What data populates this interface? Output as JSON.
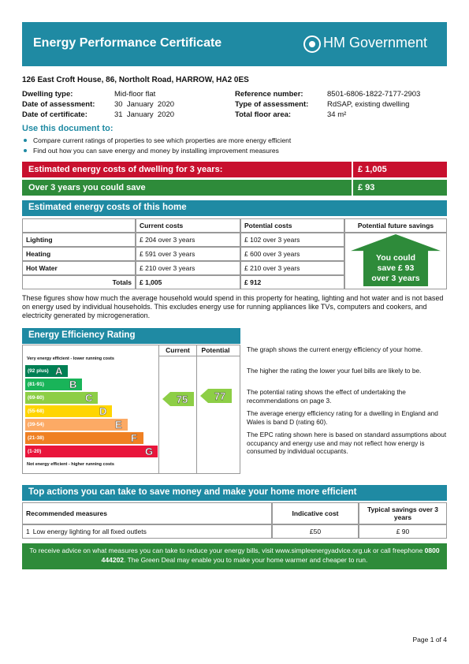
{
  "header": {
    "title": "Energy Performance Certificate",
    "logo": "HM Government"
  },
  "address": "126 East Croft House, 86, Northolt Road, HARROW, HA2 0ES",
  "details": {
    "left": [
      {
        "label": "Dwelling type:",
        "value": "Mid-floor flat"
      },
      {
        "label": "Date of assessment:",
        "value": "30  January  2020"
      },
      {
        "label": "Date of certificate:",
        "value": "31  January  2020"
      }
    ],
    "right": [
      {
        "label": "Reference number:",
        "value": "8501-6806-1822-7177-2903"
      },
      {
        "label": "Type of assessment:",
        "value": "RdSAP, existing dwelling"
      },
      {
        "label": "Total floor area:",
        "value": "34 m²"
      }
    ]
  },
  "use": {
    "title": "Use this document to:",
    "items": [
      "Compare current ratings of properties to see which properties are more energy efficient",
      "Find out how you can save energy and money by installing improvement measures"
    ]
  },
  "summary": [
    {
      "label": "Estimated energy costs of dwelling for 3 years:",
      "value": "£ 1,005"
    },
    {
      "label": "Over 3 years you could save",
      "value": "£ 93"
    }
  ],
  "costs": {
    "title": "Estimated energy costs of this home",
    "headers": [
      "Current costs",
      "Potential costs",
      "Potential future savings"
    ],
    "rows": [
      [
        "Lighting",
        "£ 204 over 3 years",
        "£ 102 over 3 years"
      ],
      [
        "Heating",
        "£ 591 over 3 years",
        "£ 600 over 3 years"
      ],
      [
        "Hot Water",
        "£ 210 over 3 years",
        "£ 210 over 3 years"
      ]
    ],
    "totals": {
      "label": "Totals",
      "current": "£ 1,005",
      "potential": "£ 912"
    },
    "savings": [
      "You could",
      "save £ 93",
      "over 3 years"
    ]
  },
  "note": "These figures show how much the average household would spend in this property for heating, lighting and hot water and is not based on energy used by individual households. This excludes energy use for running appliances like TVs, computers and cookers, and electricity generated by microgeneration.",
  "efficiency": {
    "title": "Energy Efficiency Rating",
    "columns": [
      "Current",
      "Potential"
    ],
    "top_caption": "Very energy efficient - lower running costs",
    "bands": [
      {
        "range": "(92 plus)",
        "letter": "A"
      },
      {
        "range": "(81-91)",
        "letter": "B"
      },
      {
        "range": "(69-80)",
        "letter": "C"
      },
      {
        "range": "(55-68)",
        "letter": "D"
      },
      {
        "range": "(39-54)",
        "letter": "E"
      },
      {
        "range": "(21-38)",
        "letter": "F"
      },
      {
        "range": "(1-20)",
        "letter": "G"
      }
    ],
    "bottom_caption": "Not energy efficient - higher running costs",
    "current": "75",
    "potential": "77",
    "notes": [
      "The graph shows the current energy efficiency of your home.",
      "The higher the rating the lower your fuel bills are likely to be.",
      "The potential rating shows the effect of undertaking the recommendations on page 3.",
      "The average energy efficiency rating for a dwelling in England and Wales is band D (rating 60).",
      "The EPC rating shown here is based on standard assumptions about occupancy and energy use and may not reflect how energy is consumed by individual occupants."
    ]
  },
  "actions": {
    "title": "Top actions you can take to save money and make your home more efficient",
    "headers": [
      "Recommended measures",
      "Indicative cost",
      "Typical savings over 3 years"
    ],
    "rows": [
      [
        "1",
        "Low energy lighting for all fixed outlets",
        "£50",
        "£ 90"
      ]
    ]
  },
  "footer": {
    "before": "To receive advice on what measures you can take to reduce your energy bills, visit www.simpleenergyadvice.org.uk or call freephone ",
    "phone": "0800 444202",
    "after": ". The Green Deal may enable you to make your home warmer and cheaper to run."
  },
  "page": "Page 1 of 4"
}
